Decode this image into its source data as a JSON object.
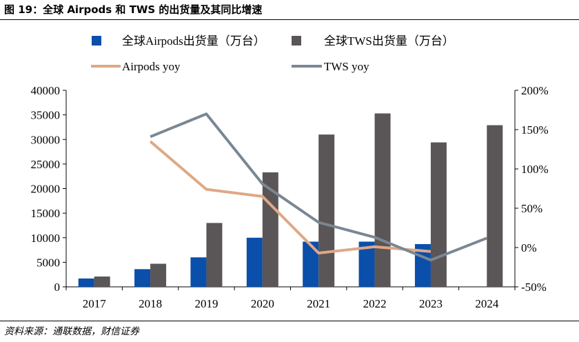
{
  "figure": {
    "title": "图 19：全球 Airpods 和 TWS 的出货量及其同比增速",
    "source": "资料来源：通联数据，财信证券"
  },
  "colors": {
    "airpods_bar": "#0a4faa",
    "tws_bar": "#5a5556",
    "airpods_line": "#dfa886",
    "tws_line": "#7a8793",
    "axis": "#000000"
  },
  "chart_data": {
    "type": "bar",
    "categories": [
      "2017",
      "2018",
      "2019",
      "2020",
      "2021",
      "2022",
      "2023",
      "2024"
    ],
    "left_axis": {
      "ylim": [
        0,
        40000
      ],
      "ticks": [
        "0",
        "5000",
        "10000",
        "15000",
        "20000",
        "25000",
        "30000",
        "35000",
        "40000"
      ]
    },
    "right_axis": {
      "ylim": [
        -50,
        200
      ],
      "ticks": [
        "-50%",
        "0%",
        "50%",
        "100%",
        "150%",
        "200%"
      ]
    },
    "series": [
      {
        "name": "全球Airpods出货量（万台）",
        "kind": "bar",
        "axis": "left",
        "values": [
          1700,
          3600,
          6000,
          10000,
          9200,
          9200,
          8700,
          null
        ]
      },
      {
        "name": "全球TWS出货量（万台）",
        "kind": "bar",
        "axis": "left",
        "values": [
          2100,
          4700,
          13000,
          23300,
          31000,
          35300,
          29400,
          32900
        ]
      },
      {
        "name": "Airpods yoy",
        "kind": "line",
        "axis": "right",
        "values": [
          null,
          135,
          74,
          65,
          -7,
          1,
          -5,
          null
        ]
      },
      {
        "name": "TWS yoy",
        "kind": "line",
        "axis": "right",
        "values": [
          null,
          141,
          170,
          81,
          32,
          13,
          -16,
          12
        ]
      }
    ],
    "legend": {
      "placement": "top"
    },
    "grid": false
  }
}
